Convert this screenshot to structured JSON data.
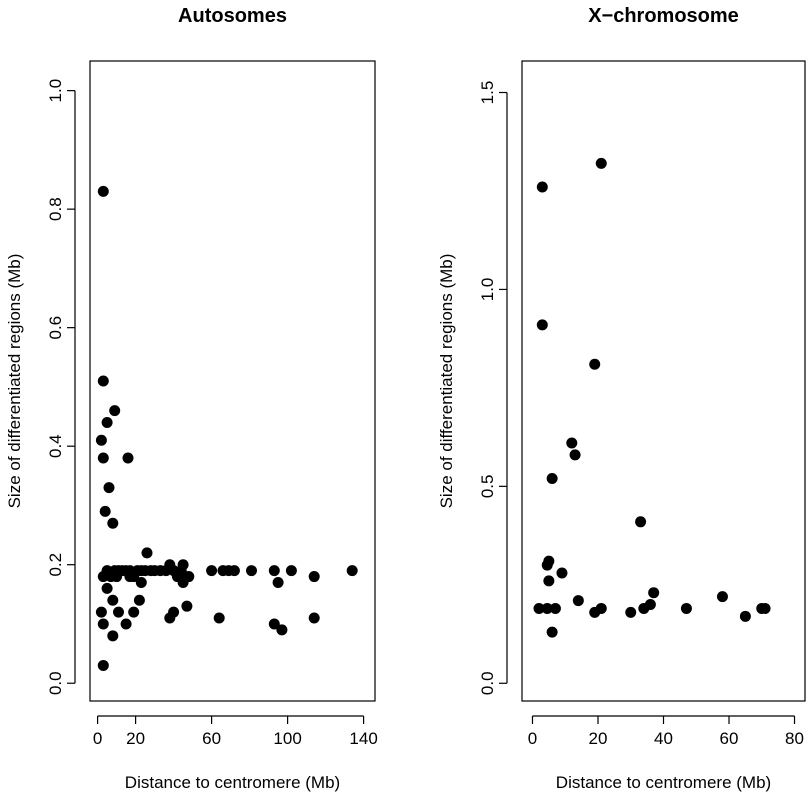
{
  "chart_data": [
    {
      "type": "scatter",
      "title": "Autosomes",
      "xlabel": "Distance to centromere (Mb)",
      "ylabel": "Size of differentiated regions (Mb)",
      "xlim": [
        -4,
        146
      ],
      "ylim": [
        -0.03,
        1.05
      ],
      "xticks": [
        0,
        20,
        60,
        100,
        140
      ],
      "yticks": [
        0.0,
        0.2,
        0.4,
        0.6,
        0.8,
        1.0
      ],
      "ytick_labels": [
        "0.0",
        "0.2",
        "0.4",
        "0.6",
        "0.8",
        "1.0"
      ],
      "grid": false,
      "points": [
        [
          3,
          0.83
        ],
        [
          3,
          0.51
        ],
        [
          5,
          0.44
        ],
        [
          9,
          0.46
        ],
        [
          2,
          0.41
        ],
        [
          3,
          0.38
        ],
        [
          16,
          0.38
        ],
        [
          6,
          0.33
        ],
        [
          4,
          0.29
        ],
        [
          8,
          0.27
        ],
        [
          26,
          0.22
        ],
        [
          5,
          0.19
        ],
        [
          7,
          0.18
        ],
        [
          9,
          0.19
        ],
        [
          11,
          0.19
        ],
        [
          13,
          0.19
        ],
        [
          15,
          0.19
        ],
        [
          17,
          0.19
        ],
        [
          19,
          0.18
        ],
        [
          21,
          0.19
        ],
        [
          23,
          0.19
        ],
        [
          25,
          0.19
        ],
        [
          28,
          0.19
        ],
        [
          30,
          0.19
        ],
        [
          33,
          0.19
        ],
        [
          36,
          0.19
        ],
        [
          38,
          0.2
        ],
        [
          40,
          0.19
        ],
        [
          42,
          0.18
        ],
        [
          44,
          0.19
        ],
        [
          45,
          0.2
        ],
        [
          46,
          0.18
        ],
        [
          48,
          0.18
        ],
        [
          60,
          0.19
        ],
        [
          66,
          0.19
        ],
        [
          69,
          0.19
        ],
        [
          72,
          0.19
        ],
        [
          81,
          0.19
        ],
        [
          93,
          0.19
        ],
        [
          95,
          0.17
        ],
        [
          114,
          0.18
        ],
        [
          134,
          0.19
        ],
        [
          3,
          0.18
        ],
        [
          5,
          0.16
        ],
        [
          8,
          0.14
        ],
        [
          23,
          0.17
        ],
        [
          17,
          0.18
        ],
        [
          22,
          0.14
        ],
        [
          45,
          0.17
        ],
        [
          47,
          0.13
        ],
        [
          2,
          0.12
        ],
        [
          11,
          0.12
        ],
        [
          19,
          0.12
        ],
        [
          38,
          0.11
        ],
        [
          40,
          0.12
        ],
        [
          64,
          0.11
        ],
        [
          3,
          0.1
        ],
        [
          15,
          0.1
        ],
        [
          93,
          0.1
        ],
        [
          97,
          0.09
        ],
        [
          114,
          0.11
        ],
        [
          8,
          0.08
        ],
        [
          3,
          0.03
        ],
        [
          10,
          0.18
        ],
        [
          102,
          0.19
        ]
      ]
    },
    {
      "type": "scatter",
      "title": "X−chromosome",
      "xlabel": "Distance to centromere (Mb)",
      "ylabel": "Size of differentiated regions (Mb)",
      "xlim": [
        -3.2,
        83.2
      ],
      "ylim": [
        -0.045,
        1.58
      ],
      "xticks": [
        0,
        20,
        40,
        60,
        80
      ],
      "yticks": [
        0.0,
        0.5,
        1.0,
        1.5
      ],
      "ytick_labels": [
        "0.0",
        "0.5",
        "1.0",
        "1.5"
      ],
      "grid": false,
      "points": [
        [
          21,
          1.32
        ],
        [
          3,
          1.26
        ],
        [
          3,
          0.91
        ],
        [
          19,
          0.81
        ],
        [
          12,
          0.61
        ],
        [
          13,
          0.58
        ],
        [
          6,
          0.52
        ],
        [
          33,
          0.41
        ],
        [
          5,
          0.31
        ],
        [
          4.5,
          0.3
        ],
        [
          9,
          0.28
        ],
        [
          5,
          0.26
        ],
        [
          37,
          0.23
        ],
        [
          58,
          0.22
        ],
        [
          14,
          0.21
        ],
        [
          36,
          0.2
        ],
        [
          34,
          0.19
        ],
        [
          2,
          0.19
        ],
        [
          4.5,
          0.19
        ],
        [
          7,
          0.19
        ],
        [
          21,
          0.19
        ],
        [
          30,
          0.18
        ],
        [
          19,
          0.18
        ],
        [
          47,
          0.19
        ],
        [
          71,
          0.19
        ],
        [
          70,
          0.19
        ],
        [
          65,
          0.17
        ],
        [
          6,
          0.13
        ]
      ]
    }
  ]
}
